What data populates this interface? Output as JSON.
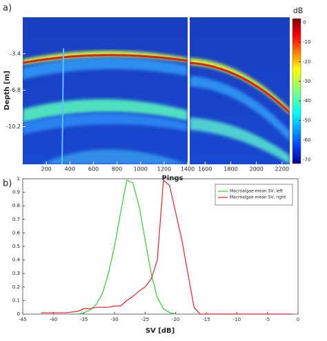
{
  "chart_data": [
    {
      "type": "echogram",
      "panel_label": "a)",
      "xlabel": "Pings",
      "ylabel": "Depth [m]",
      "ylim": [
        0,
        -13.7
      ],
      "yticks": [
        -3.4,
        -6.8,
        -10.2
      ],
      "xlim": [
        0,
        1400
      ],
      "xticks": [
        200,
        400,
        600,
        800,
        1000,
        1200,
        1400
      ],
      "x2lim": [
        1480,
        2260
      ],
      "x2ticks": [
        1600,
        1800,
        2000,
        2200
      ],
      "colorbar_title": "dB",
      "clim": [
        2,
        -72
      ],
      "cticks": [
        0,
        -10,
        -20,
        -30,
        -40,
        -50,
        -60,
        -70
      ]
    },
    {
      "type": "line",
      "panel_label": "b)",
      "xlabel": "SV [dB]",
      "xlim": [
        -45,
        0
      ],
      "xticks": [
        -45,
        -40,
        -35,
        -30,
        -25,
        -20,
        -15,
        -10,
        -5,
        0
      ],
      "ylim": [
        0,
        1
      ],
      "yticks": [
        0,
        0.1,
        0.2,
        0.3,
        0.4,
        0.5,
        0.6,
        0.7,
        0.8,
        0.9,
        1
      ],
      "legend": "upper right",
      "x": [
        -42,
        -40,
        -38,
        -36,
        -35,
        -34,
        -33,
        -32,
        -31,
        -30,
        -29,
        -28,
        -27,
        -26,
        -25,
        -24,
        -23,
        -22,
        -21,
        -20,
        -19,
        -18,
        -17,
        -16,
        -15,
        -10,
        -5,
        -1
      ],
      "series": [
        {
          "name": "Macroalgae mean SV, left",
          "color": "#33cc33",
          "values": [
            null,
            null,
            null,
            0,
            0.01,
            0.03,
            0.07,
            0.15,
            0.3,
            0.5,
            0.75,
            0.99,
            0.97,
            0.8,
            0.55,
            0.3,
            0.12,
            0.04,
            0.01,
            0,
            null,
            null,
            null,
            null,
            null,
            null,
            null,
            null
          ]
        },
        {
          "name": "Macroalgae mean SV, right",
          "color": "#e8202a",
          "values": [
            0.01,
            0.01,
            0.01,
            0.02,
            0.04,
            0.04,
            0.05,
            0.05,
            0.05,
            0.06,
            0.06,
            0.1,
            0.13,
            0.17,
            0.2,
            0.26,
            0.4,
            0.99,
            0.95,
            0.75,
            0.55,
            0.3,
            0.05,
            0,
            0,
            0,
            0,
            0
          ]
        }
      ]
    }
  ]
}
